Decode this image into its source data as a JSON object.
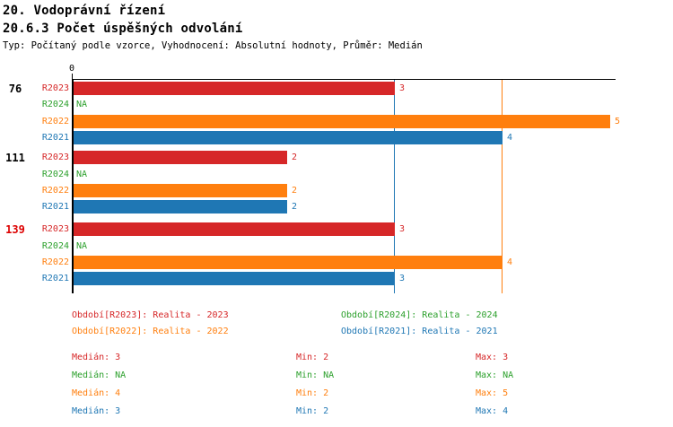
{
  "header": {
    "title": "20. Vodoprávní řízení",
    "subtitle": "20.6.3 Počet úspěšných odvolání",
    "meta": "Typ: Počítaný podle vzorce, Vyhodnocení: Absolutní hodnoty, Průměr: Medián"
  },
  "colors": {
    "R2023": "#d62728",
    "R2024": "#2ca02c",
    "R2022": "#ff7f0e",
    "R2021": "#1f77b4",
    "highlight_label": "#dd0000",
    "normal_label": "#000000",
    "axis": "#000000"
  },
  "chart_data": {
    "type": "bar",
    "orientation": "horizontal",
    "title": "20.6.3 Počet úspěšných odvolání",
    "x_axis": {
      "range": [
        0,
        5.05
      ],
      "ticks": [
        {
          "value": 0,
          "label": "0"
        }
      ],
      "grid": false
    },
    "row_order": [
      "R2023",
      "R2024",
      "R2022",
      "R2021"
    ],
    "na_text": "NA",
    "groups": [
      {
        "label": "76",
        "highlight": false,
        "values": {
          "R2023": 3,
          "R2024": "NA",
          "R2022": 5,
          "R2021": 4
        }
      },
      {
        "label": "111",
        "highlight": false,
        "values": {
          "R2023": 2,
          "R2024": "NA",
          "R2022": 2,
          "R2021": 2
        }
      },
      {
        "label": "139",
        "highlight": true,
        "values": {
          "R2023": 3,
          "R2024": "NA",
          "R2022": 4,
          "R2021": 3
        }
      }
    ],
    "reference_lines": [
      {
        "series": "R2021",
        "value": 3
      },
      {
        "series": "R2022",
        "value": 4
      }
    ]
  },
  "legend": {
    "items": [
      {
        "series": "R2023",
        "label": "Období[R2023]: Realita - 2023"
      },
      {
        "series": "R2024",
        "label": "Období[R2024]: Realita - 2024"
      },
      {
        "series": "R2022",
        "label": "Období[R2022]: Realita - 2022"
      },
      {
        "series": "R2021",
        "label": "Období[R2021]: Realita - 2021"
      }
    ]
  },
  "stats": {
    "rows": [
      {
        "series": "R2023",
        "median": "Medián: 3",
        "min": "Min: 2",
        "max": "Max: 3"
      },
      {
        "series": "R2024",
        "median": "Medián: NA",
        "min": "Min: NA",
        "max": "Max: NA"
      },
      {
        "series": "R2022",
        "median": "Medián: 4",
        "min": "Min: 2",
        "max": "Max: 5"
      },
      {
        "series": "R2021",
        "median": "Medián: 3",
        "min": "Min: 2",
        "max": "Max: 4"
      }
    ]
  }
}
